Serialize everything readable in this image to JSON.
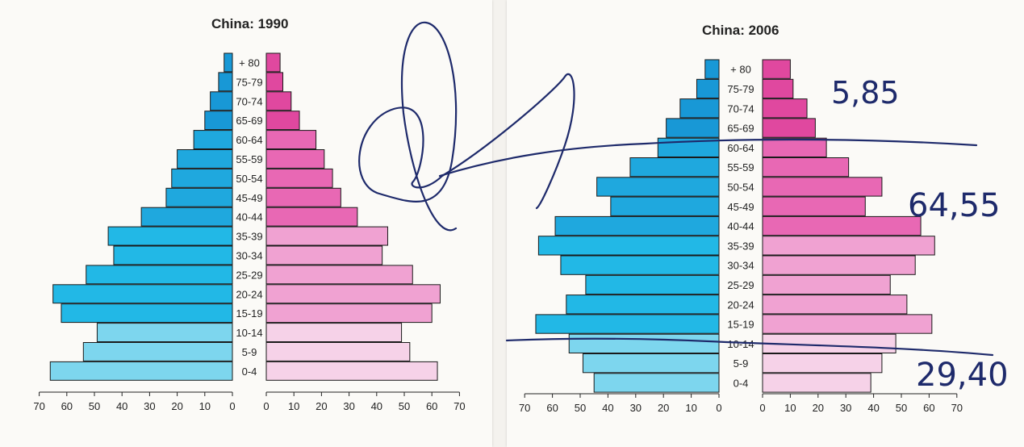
{
  "chart_data": [
    {
      "type": "bar",
      "title": "China: 1990",
      "orientation": "horizontal-population-pyramid",
      "categories": [
        "+ 80",
        "75-79",
        "70-74",
        "65-69",
        "60-64",
        "55-59",
        "50-54",
        "45-49",
        "40-44",
        "35-39",
        "30-34",
        "25-29",
        "20-24",
        "15-19",
        "10-14",
        "5-9",
        "0-4"
      ],
      "series": [
        {
          "values": [
            3,
            5,
            8,
            10,
            14,
            20,
            22,
            24,
            33,
            45,
            43,
            53,
            65,
            62,
            49,
            54,
            66
          ],
          "color": "#1fb3e0"
        },
        {
          "values": [
            5,
            6,
            9,
            12,
            18,
            21,
            24,
            27,
            33,
            44,
            42,
            53,
            63,
            60,
            49,
            52,
            62
          ],
          "color": "#e868b4"
        }
      ],
      "xlim": [
        0,
        70
      ],
      "ticks_left": [
        "70",
        "60",
        "50",
        "40",
        "30",
        "20",
        "10",
        "0"
      ],
      "ticks_right": [
        "0",
        "10",
        "20",
        "30",
        "40",
        "50",
        "60",
        "70"
      ],
      "grid": false
    },
    {
      "type": "bar",
      "title": "China: 2006",
      "orientation": "horizontal-population-pyramid",
      "categories": [
        "+ 80",
        "75-79",
        "70-74",
        "65-69",
        "60-64",
        "55-59",
        "50-54",
        "45-49",
        "40-44",
        "35-39",
        "30-34",
        "25-29",
        "20-24",
        "15-19",
        "10-14",
        "5-9",
        "0-4"
      ],
      "series": [
        {
          "values": [
            5,
            8,
            14,
            19,
            22,
            32,
            44,
            39,
            59,
            65,
            57,
            48,
            55,
            66,
            54,
            49,
            45
          ],
          "color": "#1fb3e0"
        },
        {
          "values": [
            10,
            11,
            16,
            19,
            23,
            31,
            43,
            37,
            57,
            62,
            55,
            46,
            52,
            61,
            48,
            43,
            39
          ],
          "color": "#e868b4"
        }
      ],
      "xlim": [
        0,
        70
      ],
      "ticks_left": [
        "70",
        "60",
        "50",
        "40",
        "30",
        "20",
        "10",
        "0"
      ],
      "ticks_right": [
        "0",
        "10",
        "20",
        "30",
        "40",
        "50",
        "60",
        "70"
      ],
      "grid": false
    }
  ],
  "annotations": {
    "top_share": "5,85",
    "middle_share": "64,55",
    "bottom_share": "29,40"
  }
}
